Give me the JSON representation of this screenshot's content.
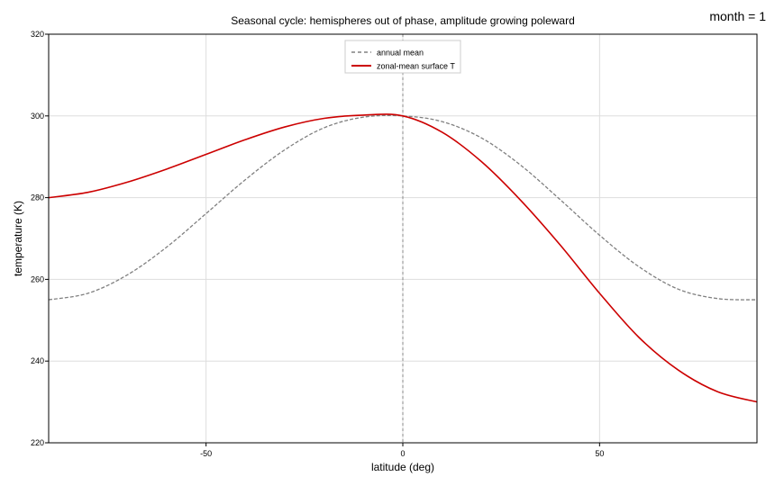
{
  "corner_label": "month = 1",
  "chart_data": {
    "type": "line",
    "title": "Seasonal cycle: hemispheres out of phase, amplitude growing poleward",
    "xlabel": "latitude (deg)",
    "ylabel": "temperature (K)",
    "xlim": [
      -90,
      90
    ],
    "ylim": [
      220,
      320
    ],
    "xticks": [
      -50,
      0,
      50
    ],
    "yticks": [
      220,
      240,
      260,
      280,
      300,
      320
    ],
    "grid": true,
    "legend_position": "top-center",
    "x": [
      -90,
      -80,
      -70,
      -60,
      -50,
      -40,
      -30,
      -20,
      -10,
      0,
      10,
      20,
      30,
      40,
      50,
      60,
      70,
      80,
      90
    ],
    "series": [
      {
        "name": "annual mean",
        "style": "dashed",
        "color": "#808080",
        "values": [
          255.0,
          256.6,
          261.1,
          267.9,
          276.1,
          284.4,
          291.7,
          297.1,
          299.7,
          300.0,
          298.6,
          294.6,
          287.9,
          279.5,
          270.8,
          263.1,
          257.6,
          255.3,
          255.0
        ]
      },
      {
        "name": "zonal-mean surface T",
        "style": "solid",
        "color": "#cc0000",
        "values": [
          280.0,
          281.3,
          283.8,
          287.0,
          290.6,
          294.2,
          297.3,
          299.4,
          300.2,
          300.0,
          296.0,
          288.8,
          279.3,
          268.4,
          256.6,
          245.8,
          237.8,
          232.5,
          230.0
        ]
      }
    ]
  }
}
